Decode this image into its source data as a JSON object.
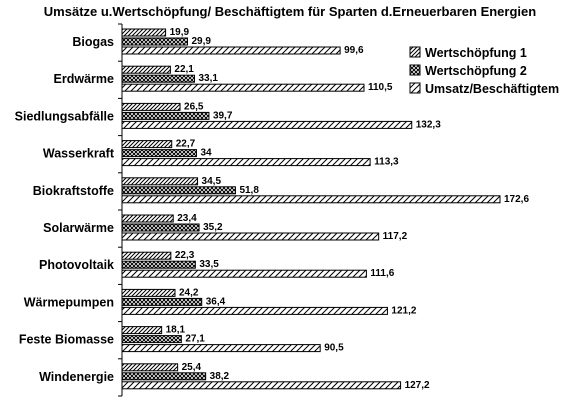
{
  "chart_data": {
    "type": "bar",
    "orientation": "horizontal",
    "title": "Umsätze u.Wertschöpfung/ Beschäftigtem für Sparten d.Erneuerbaren Energien",
    "categories": [
      "Biogas",
      "Erdwärme",
      "Siedlungsabfälle",
      "Wasserkraft",
      "Biokraftstoffe",
      "Solarwärme",
      "Photovoltaik",
      "Wärmepumpen",
      "Feste Biomasse",
      "Windenergie"
    ],
    "series": [
      {
        "name": "Wertschöpfung 1",
        "values": [
          19.9,
          22.1,
          26.5,
          22.7,
          34.5,
          23.4,
          22.3,
          24.2,
          18.1,
          25.4
        ],
        "labels": [
          "19,9",
          "22,1",
          "26,5",
          "22,7",
          "34,5",
          "23,4",
          "22,3",
          "24,2",
          "18,1",
          "25,4"
        ],
        "pattern": "diagonal-hatch"
      },
      {
        "name": "Wertschöpfung 2",
        "values": [
          29.9,
          33.1,
          39.7,
          34,
          51.8,
          35.2,
          33.5,
          36.4,
          27.1,
          38.2
        ],
        "labels": [
          "29,9",
          "33,1",
          "39,7",
          "34",
          "51,8",
          "35,2",
          "33,5",
          "36,4",
          "27,1",
          "38,2"
        ],
        "pattern": "cross-hatch"
      },
      {
        "name": "Umsatz/Beschäftigtem",
        "values": [
          99.6,
          110.5,
          132.3,
          113.3,
          172.6,
          117.2,
          111.6,
          121.2,
          90.5,
          127.2
        ],
        "labels": [
          "99,6",
          "110,5",
          "132,3",
          "113,3",
          "172,6",
          "117,2",
          "111,6",
          "121,2",
          "90,5",
          "127,2"
        ],
        "pattern": "wide-diagonal-hatch"
      }
    ],
    "xlim": [
      0,
      180
    ],
    "grid": false,
    "legend_position": "right"
  }
}
